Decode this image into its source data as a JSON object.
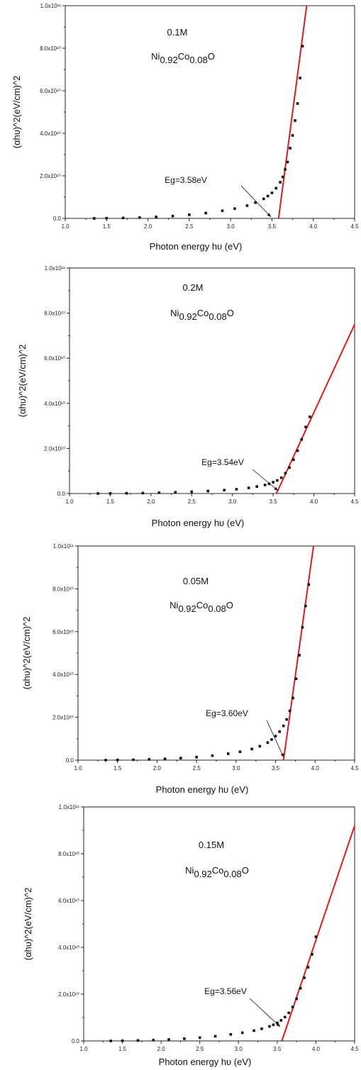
{
  "chart_data": [
    {
      "type": "scatter",
      "concentration": "0.1M",
      "formula": {
        "base1": "Ni",
        "sub1": "0.92",
        "base2": "Co",
        "sub2": "0.08",
        "base3": "O"
      },
      "band_gap_label": "Eg=3.58eV",
      "band_gap": 3.58,
      "xlabel": "Photon energy hυ (eV)",
      "ylabel": "(αhυ)^2(eV/cm)^2",
      "xlim": [
        1.0,
        4.5
      ],
      "ylim": [
        0,
        100000000000.0
      ],
      "x_ticks": [
        "1.0",
        "1.5",
        "2.0",
        "2.5",
        "3.0",
        "3.5",
        "4.0",
        "4.5"
      ],
      "y_ticks": [
        "0.0",
        "2.0x10¹⁰",
        "4.0x10¹⁰",
        "6.0x10¹⁰",
        "8.0x10¹⁰",
        "1.0x10¹¹"
      ],
      "series": [
        {
          "x": [
            1.35,
            1.5,
            1.7,
            1.9,
            2.1,
            2.3,
            2.5,
            2.7,
            2.9,
            3.05,
            3.2,
            3.3,
            3.4,
            3.45,
            3.5,
            3.55,
            3.6,
            3.63,
            3.66,
            3.69,
            3.72,
            3.75,
            3.78,
            3.81,
            3.84,
            3.87
          ],
          "y": [
            0.0,
            100000000.0,
            200000000.0,
            400000000.0,
            700000000.0,
            1100000000.0,
            1700000000.0,
            2500000000.0,
            3600000000.0,
            4600000000.0,
            6000000000.0,
            7400000000.0,
            9200000000.0,
            10500000000.0,
            12000000000.0,
            14200000000.0,
            17000000000.0,
            19500000000.0,
            23000000000.0,
            26500000000.0,
            33000000000.0,
            39000000000.0,
            46000000000.0,
            54000000000.0,
            66000000000.0,
            81000000000.0
          ]
        }
      ],
      "fit_line": {
        "x": [
          3.58,
          3.92
        ],
        "y": [
          0,
          100000000000.0
        ]
      }
    },
    {
      "type": "scatter",
      "concentration": "0.2M",
      "formula": {
        "base1": "Ni",
        "sub1": "0.92",
        "base2": "Co",
        "sub2": "0.08",
        "base3": "O"
      },
      "band_gap_label": "Eg=3.54eV",
      "band_gap": 3.54,
      "xlabel": "Photon energy hυ (eV)",
      "ylabel": "(αhυ)^2(eV/cm)^2",
      "xlim": [
        1.0,
        4.5
      ],
      "ylim": [
        0,
        100000000000.0
      ],
      "x_ticks": [
        "1.0",
        "1.5",
        "2.0",
        "2.5",
        "3.0",
        "3.5",
        "4.0",
        "4.5"
      ],
      "y_ticks": [
        "0.0",
        "2.0x10¹⁰",
        "4.0x10¹⁰",
        "6.0x10¹⁰",
        "8.0x10¹⁰",
        "1.0x10¹¹"
      ],
      "series": [
        {
          "x": [
            1.35,
            1.5,
            1.7,
            1.9,
            2.1,
            2.3,
            2.5,
            2.7,
            2.9,
            3.05,
            3.2,
            3.3,
            3.4,
            3.45,
            3.5,
            3.55,
            3.6,
            3.65,
            3.7,
            3.75,
            3.8,
            3.85,
            3.9,
            3.95
          ],
          "y": [
            0.0,
            50000000.0,
            100000000.0,
            200000000.0,
            350000000.0,
            550000000.0,
            800000000.0,
            1100000000.0,
            1500000000.0,
            1900000000.0,
            2500000000.0,
            3100000000.0,
            3800000000.0,
            4300000000.0,
            5000000000.0,
            5800000000.0,
            7000000000.0,
            9000000000.0,
            11500000000.0,
            15000000000.0,
            19000000000.0,
            24000000000.0,
            29500000000.0,
            34000000000.0
          ]
        }
      ],
      "fit_line": {
        "x": [
          3.54,
          4.5
        ],
        "y": [
          0,
          75000000000.0
        ]
      }
    },
    {
      "type": "scatter",
      "concentration": "0.05M",
      "formula": {
        "base1": "Ni",
        "sub1": "0.92",
        "base2": "Co",
        "sub2": "0.08",
        "base3": "O"
      },
      "band_gap_label": "Eg=3.60eV",
      "band_gap": 3.6,
      "xlabel": "Photon energy hυ (eV)",
      "ylabel": "(αhυ)^2(eV/cm)^2",
      "xlim": [
        1.0,
        4.5
      ],
      "ylim": [
        0,
        100000000000.0
      ],
      "x_ticks": [
        "1.0",
        "1.5",
        "2.0",
        "2.5",
        "3.0",
        "3.5",
        "4.0",
        "4.5"
      ],
      "y_ticks": [
        "0.0",
        "2.0x10¹⁰",
        "4.0x10¹⁰",
        "6.0x10¹⁰",
        "8.0x10¹⁰",
        "1.0x10¹¹"
      ],
      "series": [
        {
          "x": [
            1.35,
            1.5,
            1.7,
            1.9,
            2.1,
            2.3,
            2.5,
            2.7,
            2.9,
            3.05,
            3.2,
            3.3,
            3.4,
            3.45,
            3.5,
            3.55,
            3.6,
            3.64,
            3.68,
            3.72,
            3.76,
            3.8,
            3.84,
            3.88,
            3.92
          ],
          "y": [
            0.0,
            100000000.0,
            200000000.0,
            350000000.0,
            600000000.0,
            950000000.0,
            1400000000.0,
            2100000000.0,
            3000000000.0,
            3900000000.0,
            5200000000.0,
            6500000000.0,
            8200000000.0,
            9600000000.0,
            11200000000.0,
            13300000000.0,
            16000000000.0,
            19000000000.0,
            23000000000.0,
            29000000000.0,
            38000000000.0,
            49000000000.0,
            62000000000.0,
            72000000000.0,
            82000000000.0
          ]
        }
      ],
      "fit_line": {
        "x": [
          3.6,
          3.98
        ],
        "y": [
          0,
          100000000000.0
        ]
      }
    },
    {
      "type": "scatter",
      "concentration": "0.15M",
      "formula": {
        "base1": "Ni",
        "sub1": "0.92",
        "base2": "Co",
        "sub2": "0.08",
        "base3": "O"
      },
      "band_gap_label": "Eg=3.56eV",
      "band_gap": 3.56,
      "xlabel": "Photon energy hυ  (eV)",
      "ylabel": "(αhυ)^2(eV/cm)^2",
      "xlim": [
        1.0,
        4.5
      ],
      "ylim": [
        0,
        100000000000.0
      ],
      "x_ticks": [
        "1.0",
        "1.5",
        "2.0",
        "2.5",
        "3.0",
        "3.5",
        "4.0",
        "4.5"
      ],
      "y_ticks": [
        "0.0",
        "2.0x10¹⁰",
        "4.0x10¹⁰",
        "6.0x10¹⁰",
        "8.0x10¹⁰",
        "1.0x10¹¹"
      ],
      "series": [
        {
          "x": [
            1.35,
            1.5,
            1.7,
            1.9,
            2.1,
            2.3,
            2.5,
            2.7,
            2.9,
            3.05,
            3.2,
            3.3,
            3.4,
            3.45,
            3.5,
            3.55,
            3.6,
            3.65,
            3.7,
            3.75,
            3.8,
            3.85,
            3.9,
            3.95,
            4.0
          ],
          "y": [
            0.0,
            100000000.0,
            200000000.0,
            350000000.0,
            600000000.0,
            950000000.0,
            1400000000.0,
            2000000000.0,
            2800000000.0,
            3500000000.0,
            4400000000.0,
            5200000000.0,
            6200000000.0,
            6900000000.0,
            7700000000.0,
            8800000000.0,
            10200000000.0,
            12000000000.0,
            14500000000.0,
            18000000000.0,
            22500000000.0,
            27000000000.0,
            31500000000.0,
            37000000000.0,
            44500000000.0
          ]
        }
      ],
      "fit_line": {
        "x": [
          3.56,
          4.5
        ],
        "y": [
          0,
          92000000000.0
        ]
      }
    }
  ]
}
